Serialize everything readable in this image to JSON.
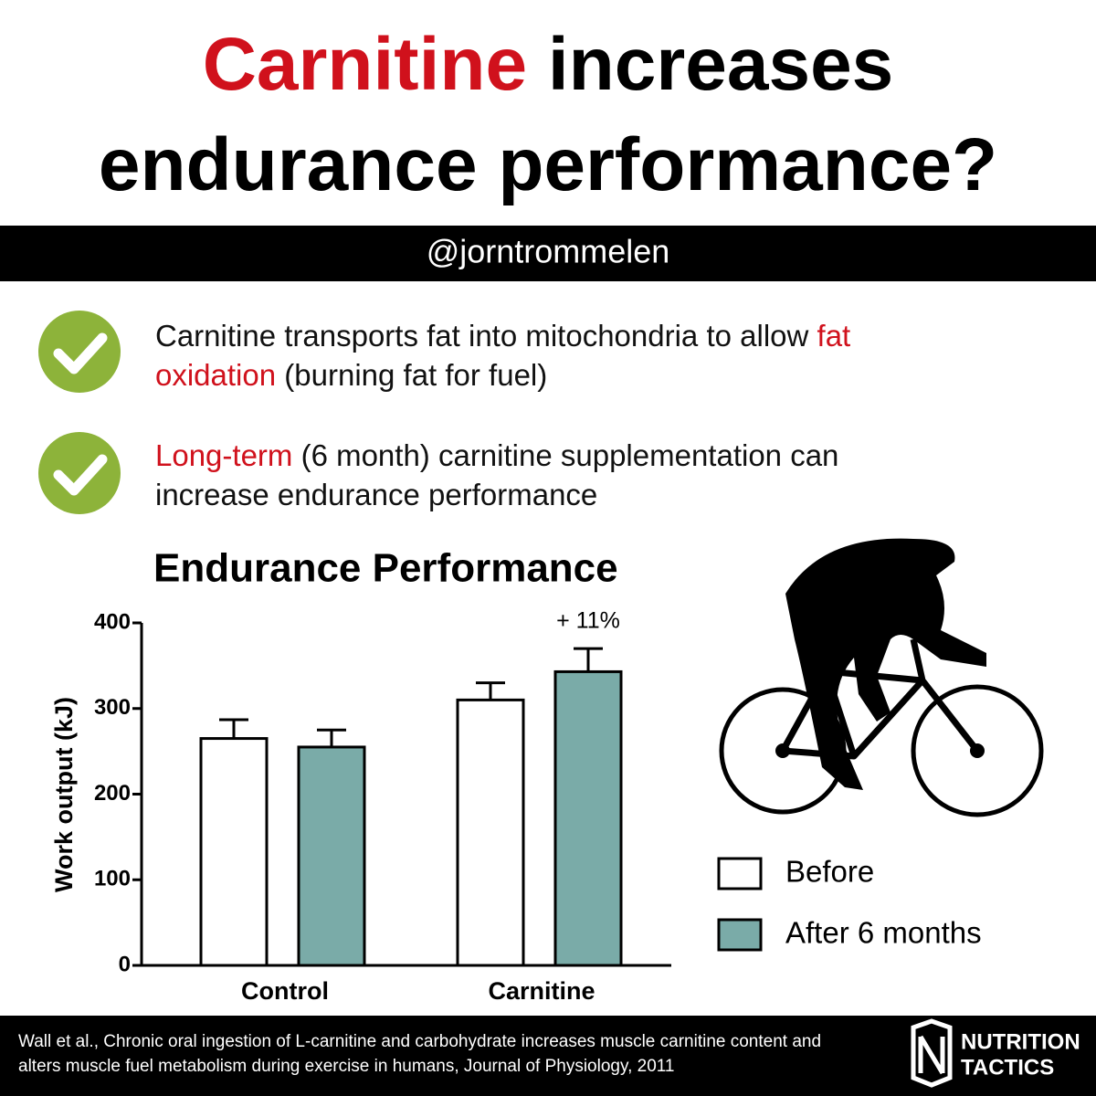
{
  "header": {
    "title_highlight": "Carnitine",
    "title_rest": "increases",
    "title_line2": "endurance performance?",
    "handle": "@jorntrommelen"
  },
  "bullets": [
    {
      "before": "Carnitine transports fat into mitochondria to allow ",
      "highlight": "fat oxidation",
      "after": " (burning fat for fuel)"
    },
    {
      "before": "",
      "highlight": "Long-term",
      "after": " (6 month) carnitine supplementation can increase endurance performance"
    }
  ],
  "chart_data": {
    "type": "bar",
    "title": "Endurance Performance",
    "y_label": "Work output (kJ)",
    "categories": [
      "Control",
      "Carnitine"
    ],
    "series": [
      {
        "name": "Before",
        "color": "#ffffff",
        "values": [
          265,
          310
        ],
        "errors": [
          22,
          20
        ]
      },
      {
        "name": "After 6 months",
        "color": "#7aaba8",
        "values": [
          255,
          343
        ],
        "errors": [
          20,
          27
        ]
      }
    ],
    "annotation": "+ 11%",
    "ylim": [
      0,
      400
    ],
    "yticks": [
      0,
      100,
      200,
      300,
      400
    ],
    "grid": false,
    "legend": "right"
  },
  "footer": {
    "citation": "Wall et al., Chronic oral ingestion of L-carnitine and carbohydrate increases muscle carnitine content and alters muscle fuel metabolism during exercise in humans, Journal of Physiology, 2011",
    "logo_line1": "NUTRITION",
    "logo_line2": "TACTICS"
  }
}
